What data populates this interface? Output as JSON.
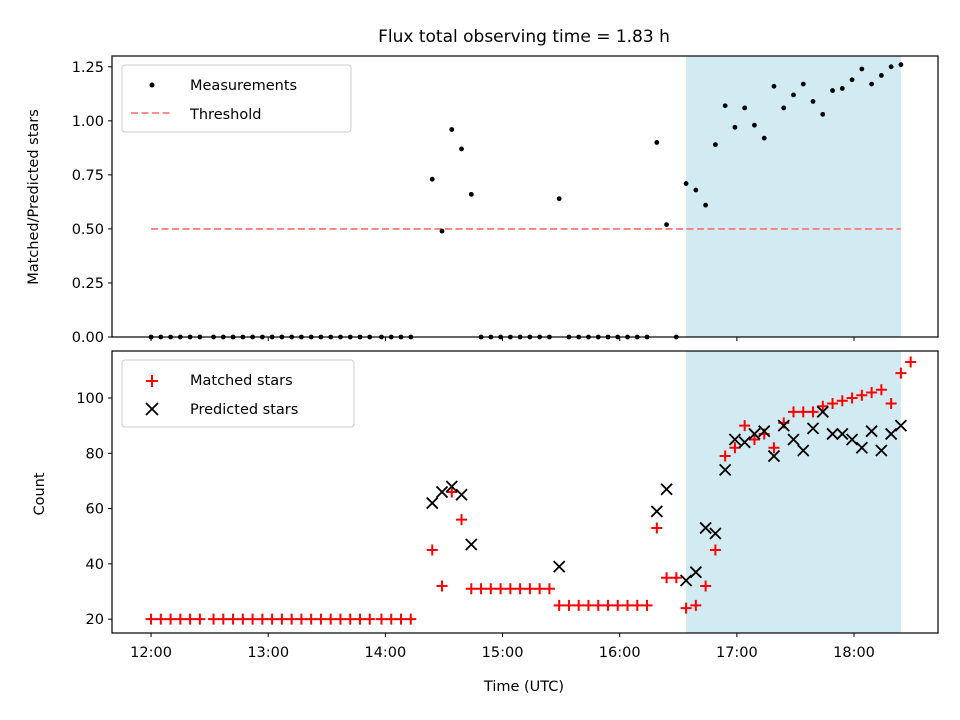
{
  "chart_data": [
    {
      "type": "scatter",
      "title": "Flux total observing time = 1.83 h",
      "xlabel": "",
      "ylabel": "Matched/Predicted stars",
      "xlim": [
        "11:40",
        "18:43"
      ],
      "ylim": [
        0,
        1.3
      ],
      "yticks": [
        "0.00",
        "0.25",
        "0.50",
        "0.75",
        "1.00",
        "1.25"
      ],
      "highlight_span": {
        "start": "16:34",
        "end": "18:24",
        "color": "#add8e6"
      },
      "legend_position": "top-left",
      "series": [
        {
          "name": "Measurements",
          "marker": "dot",
          "color": "#000000",
          "points": [
            [
              "12:00",
              0
            ],
            [
              "12:05",
              0
            ],
            [
              "12:10",
              0
            ],
            [
              "12:15",
              0
            ],
            [
              "12:20",
              0
            ],
            [
              "12:25",
              0
            ],
            [
              "12:32",
              0
            ],
            [
              "12:37",
              0
            ],
            [
              "12:42",
              0
            ],
            [
              "12:47",
              0
            ],
            [
              "12:52",
              0
            ],
            [
              "12:57",
              0
            ],
            [
              "13:02",
              0
            ],
            [
              "13:07",
              0
            ],
            [
              "13:12",
              0
            ],
            [
              "13:17",
              0
            ],
            [
              "13:22",
              0
            ],
            [
              "13:27",
              0
            ],
            [
              "13:32",
              0
            ],
            [
              "13:37",
              0
            ],
            [
              "13:42",
              0
            ],
            [
              "13:47",
              0
            ],
            [
              "13:52",
              0
            ],
            [
              "13:58",
              0
            ],
            [
              "14:03",
              0
            ],
            [
              "14:08",
              0
            ],
            [
              "14:13",
              0
            ],
            [
              "14:24",
              0.73
            ],
            [
              "14:29",
              0.49
            ],
            [
              "14:34",
              0.96
            ],
            [
              "14:39",
              0.87
            ],
            [
              "14:44",
              0.66
            ],
            [
              "14:49",
              0
            ],
            [
              "14:54",
              0
            ],
            [
              "14:59",
              0
            ],
            [
              "15:04",
              0
            ],
            [
              "15:09",
              0
            ],
            [
              "15:14",
              0
            ],
            [
              "15:19",
              0
            ],
            [
              "15:24",
              0
            ],
            [
              "15:29",
              0.64
            ],
            [
              "15:34",
              0
            ],
            [
              "15:39",
              0
            ],
            [
              "15:44",
              0
            ],
            [
              "15:49",
              0
            ],
            [
              "15:54",
              0
            ],
            [
              "15:59",
              0
            ],
            [
              "16:04",
              0
            ],
            [
              "16:09",
              0
            ],
            [
              "16:14",
              0
            ],
            [
              "16:19",
              0.9
            ],
            [
              "16:24",
              0.52
            ],
            [
              "16:29",
              0
            ],
            [
              "16:34",
              0.71
            ],
            [
              "16:39",
              0.68
            ],
            [
              "16:44",
              0.61
            ],
            [
              "16:49",
              0.89
            ],
            [
              "16:54",
              1.07
            ],
            [
              "16:59",
              0.97
            ],
            [
              "17:04",
              1.06
            ],
            [
              "17:09",
              0.98
            ],
            [
              "17:14",
              0.92
            ],
            [
              "17:19",
              1.16
            ],
            [
              "17:24",
              1.06
            ],
            [
              "17:29",
              1.12
            ],
            [
              "17:34",
              1.17
            ],
            [
              "17:39",
              1.09
            ],
            [
              "17:44",
              1.03
            ],
            [
              "17:49",
              1.14
            ],
            [
              "17:54",
              1.15
            ],
            [
              "17:59",
              1.19
            ],
            [
              "18:04",
              1.24
            ],
            [
              "18:09",
              1.17
            ],
            [
              "18:14",
              1.21
            ],
            [
              "18:19",
              1.25
            ],
            [
              "18:24",
              1.26
            ]
          ]
        },
        {
          "name": "Threshold",
          "marker": "dashed-line",
          "color": "#ff7f7f",
          "points": [
            [
              "12:00",
              0.5
            ],
            [
              "18:24",
              0.5
            ]
          ]
        }
      ]
    },
    {
      "type": "scatter",
      "title": "",
      "xlabel": "Time (UTC)",
      "ylabel": "Count",
      "xlim": [
        "11:40",
        "18:43"
      ],
      "ylim": [
        15,
        117
      ],
      "xticks": [
        "12:00",
        "13:00",
        "14:00",
        "15:00",
        "16:00",
        "17:00",
        "18:00"
      ],
      "yticks": [
        "20",
        "40",
        "60",
        "80",
        "100"
      ],
      "highlight_span": {
        "start": "16:34",
        "end": "18:24",
        "color": "#add8e6"
      },
      "legend_position": "top-left",
      "series": [
        {
          "name": "Matched stars",
          "marker": "plus",
          "color": "#ff0000",
          "points": [
            [
              "12:00",
              20
            ],
            [
              "12:05",
              20
            ],
            [
              "12:10",
              20
            ],
            [
              "12:15",
              20
            ],
            [
              "12:20",
              20
            ],
            [
              "12:25",
              20
            ],
            [
              "12:32",
              20
            ],
            [
              "12:37",
              20
            ],
            [
              "12:42",
              20
            ],
            [
              "12:47",
              20
            ],
            [
              "12:52",
              20
            ],
            [
              "12:57",
              20
            ],
            [
              "13:02",
              20
            ],
            [
              "13:07",
              20
            ],
            [
              "13:12",
              20
            ],
            [
              "13:17",
              20
            ],
            [
              "13:22",
              20
            ],
            [
              "13:27",
              20
            ],
            [
              "13:32",
              20
            ],
            [
              "13:37",
              20
            ],
            [
              "13:42",
              20
            ],
            [
              "13:47",
              20
            ],
            [
              "13:52",
              20
            ],
            [
              "13:58",
              20
            ],
            [
              "14:03",
              20
            ],
            [
              "14:08",
              20
            ],
            [
              "14:13",
              20
            ],
            [
              "14:24",
              45
            ],
            [
              "14:29",
              32
            ],
            [
              "14:34",
              66
            ],
            [
              "14:39",
              56
            ],
            [
              "14:44",
              31
            ],
            [
              "14:49",
              31
            ],
            [
              "14:54",
              31
            ],
            [
              "14:59",
              31
            ],
            [
              "15:04",
              31
            ],
            [
              "15:09",
              31
            ],
            [
              "15:14",
              31
            ],
            [
              "15:19",
              31
            ],
            [
              "15:24",
              31
            ],
            [
              "15:29",
              25
            ],
            [
              "15:34",
              25
            ],
            [
              "15:39",
              25
            ],
            [
              "15:44",
              25
            ],
            [
              "15:49",
              25
            ],
            [
              "15:54",
              25
            ],
            [
              "15:59",
              25
            ],
            [
              "16:04",
              25
            ],
            [
              "16:09",
              25
            ],
            [
              "16:14",
              25
            ],
            [
              "16:19",
              53
            ],
            [
              "16:24",
              35
            ],
            [
              "16:29",
              35
            ],
            [
              "16:34",
              24
            ],
            [
              "16:39",
              25
            ],
            [
              "16:44",
              32
            ],
            [
              "16:49",
              45
            ],
            [
              "16:54",
              79
            ],
            [
              "16:59",
              82
            ],
            [
              "17:04",
              90
            ],
            [
              "17:09",
              85
            ],
            [
              "17:14",
              87
            ],
            [
              "17:19",
              82
            ],
            [
              "17:24",
              91
            ],
            [
              "17:29",
              95
            ],
            [
              "17:34",
              95
            ],
            [
              "17:39",
              95
            ],
            [
              "17:44",
              97
            ],
            [
              "17:49",
              98
            ],
            [
              "17:54",
              99
            ],
            [
              "17:59",
              100
            ],
            [
              "18:04",
              101
            ],
            [
              "18:09",
              102
            ],
            [
              "18:14",
              103
            ],
            [
              "18:19",
              98
            ],
            [
              "18:24",
              109
            ],
            [
              "18:29",
              113
            ]
          ]
        },
        {
          "name": "Predicted stars",
          "marker": "x",
          "color": "#000000",
          "points": [
            [
              "14:24",
              62
            ],
            [
              "14:29",
              66
            ],
            [
              "14:34",
              68
            ],
            [
              "14:39",
              65
            ],
            [
              "14:44",
              47
            ],
            [
              "15:29",
              39
            ],
            [
              "16:19",
              59
            ],
            [
              "16:24",
              67
            ],
            [
              "16:34",
              34
            ],
            [
              "16:39",
              37
            ],
            [
              "16:44",
              53
            ],
            [
              "16:49",
              51
            ],
            [
              "16:54",
              74
            ],
            [
              "16:59",
              85
            ],
            [
              "17:04",
              84
            ],
            [
              "17:09",
              87
            ],
            [
              "17:14",
              88
            ],
            [
              "17:19",
              79
            ],
            [
              "17:24",
              90
            ],
            [
              "17:29",
              85
            ],
            [
              "17:34",
              81
            ],
            [
              "17:39",
              89
            ],
            [
              "17:44",
              95
            ],
            [
              "17:49",
              87
            ],
            [
              "17:54",
              87
            ],
            [
              "17:59",
              85
            ],
            [
              "18:04",
              82
            ],
            [
              "18:09",
              88
            ],
            [
              "18:14",
              81
            ],
            [
              "18:19",
              87
            ],
            [
              "18:24",
              90
            ]
          ]
        }
      ]
    }
  ]
}
